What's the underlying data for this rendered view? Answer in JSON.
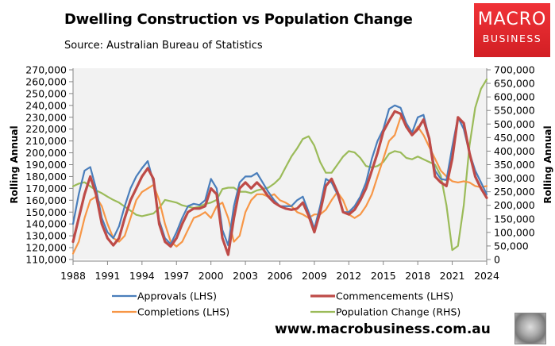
{
  "header": {
    "title": "Dwelling Construction vs Population Change",
    "subtitle": "Source: Australian Bureau of Statistics"
  },
  "logo": {
    "line1": "MACRO",
    "line2": "BUSINESS",
    "color": "#e8262b"
  },
  "footer": {
    "url": "www.macrobusiness.com.au",
    "mascot": "wolf-logo-icon"
  },
  "chart_data": {
    "type": "line",
    "title": "Dwelling Construction vs Population Change",
    "subtitle": "Source: Australian Bureau of Statistics",
    "xlabel": "",
    "ylabel": "Rolling Annual",
    "y2label": "Rolling Annual",
    "xlim": [
      1988,
      2024
    ],
    "ylim": [
      110000,
      270000
    ],
    "y2lim": [
      0,
      700000
    ],
    "grid": false,
    "plot_background": "#f2f2f2",
    "legend_position": "bottom",
    "x_ticks": [
      "1988",
      "1991",
      "1994",
      "1997",
      "2000",
      "2003",
      "2006",
      "2009",
      "2012",
      "2015",
      "2018",
      "2021",
      "2024"
    ],
    "x_tick_values": [
      1988,
      1991,
      1994,
      1997,
      2000,
      2003,
      2006,
      2009,
      2012,
      2015,
      2018,
      2021,
      2024
    ],
    "y_ticks": [
      "110,000",
      "120,000",
      "130,000",
      "140,000",
      "150,000",
      "160,000",
      "170,000",
      "180,000",
      "190,000",
      "200,000",
      "210,000",
      "220,000",
      "230,000",
      "240,000",
      "250,000",
      "260,000",
      "270,000"
    ],
    "y_tick_values": [
      110000,
      120000,
      130000,
      140000,
      150000,
      160000,
      170000,
      180000,
      190000,
      200000,
      210000,
      220000,
      230000,
      240000,
      250000,
      260000,
      270000
    ],
    "y2_ticks": [
      "0",
      "50,000",
      "100,000",
      "150,000",
      "200,000",
      "250,000",
      "300,000",
      "350,000",
      "400,000",
      "450,000",
      "500,000",
      "550,000",
      "600,000",
      "650,000",
      "700,000"
    ],
    "y2_tick_values": [
      0,
      50000,
      100000,
      150000,
      200000,
      250000,
      300000,
      350000,
      400000,
      450000,
      500000,
      550000,
      600000,
      650000,
      700000
    ],
    "x": [
      1988,
      1988.5,
      1989,
      1989.5,
      1990,
      1990.5,
      1991,
      1991.5,
      1992,
      1992.5,
      1993,
      1993.5,
      1994,
      1994.5,
      1995,
      1995.5,
      1996,
      1996.5,
      1997,
      1997.5,
      1998,
      1998.5,
      1999,
      1999.5,
      2000,
      2000.5,
      2001,
      2001.5,
      2002,
      2002.5,
      2003,
      2003.5,
      2004,
      2004.5,
      2005,
      2005.5,
      2006,
      2006.5,
      2007,
      2007.5,
      2008,
      2008.5,
      2009,
      2009.5,
      2010,
      2010.5,
      2011,
      2011.5,
      2012,
      2012.5,
      2013,
      2013.5,
      2014,
      2014.5,
      2015,
      2015.5,
      2016,
      2016.5,
      2017,
      2017.5,
      2018,
      2018.5,
      2019,
      2019.5,
      2020,
      2020.5,
      2021,
      2021.5,
      2022,
      2022.5,
      2023,
      2023.5,
      2024
    ],
    "series": [
      {
        "name": "Approvals (LHS)",
        "axis": "left",
        "color": "#4a7ebb",
        "values": [
          140000,
          165000,
          185000,
          188000,
          170000,
          145000,
          133000,
          128000,
          138000,
          155000,
          170000,
          180000,
          187000,
          193000,
          175000,
          143000,
          128000,
          123000,
          133000,
          145000,
          155000,
          157000,
          156000,
          160000,
          178000,
          170000,
          135000,
          122000,
          155000,
          175000,
          180000,
          180000,
          183000,
          175000,
          167000,
          160000,
          155000,
          155000,
          155000,
          160000,
          163000,
          150000,
          136000,
          155000,
          178000,
          175000,
          165000,
          150000,
          150000,
          155000,
          163000,
          175000,
          195000,
          210000,
          220000,
          237000,
          240000,
          238000,
          225000,
          217000,
          230000,
          232000,
          212000,
          185000,
          178000,
          177000,
          205000,
          230000,
          220000,
          200000,
          185000,
          175000,
          165000
        ]
      },
      {
        "name": "Commencements (LHS)",
        "axis": "left",
        "color": "#be4b48",
        "values": [
          125000,
          145000,
          165000,
          180000,
          165000,
          140000,
          128000,
          122000,
          128000,
          145000,
          160000,
          170000,
          180000,
          187000,
          178000,
          140000,
          125000,
          121000,
          128000,
          140000,
          150000,
          153000,
          153000,
          155000,
          170000,
          165000,
          128000,
          114000,
          145000,
          170000,
          175000,
          170000,
          175000,
          170000,
          163000,
          158000,
          155000,
          153000,
          152000,
          153000,
          158000,
          147000,
          133000,
          150000,
          172000,
          178000,
          167000,
          150000,
          148000,
          152000,
          160000,
          170000,
          185000,
          200000,
          218000,
          227000,
          235000,
          233000,
          222000,
          215000,
          220000,
          228000,
          212000,
          180000,
          175000,
          172000,
          195000,
          230000,
          225000,
          200000,
          180000,
          170000,
          162000
        ]
      },
      {
        "name": "Completions (LHS)",
        "axis": "left",
        "color": "#f79646",
        "values": [
          115000,
          125000,
          145000,
          160000,
          163000,
          155000,
          140000,
          128000,
          125000,
          130000,
          145000,
          160000,
          167000,
          170000,
          173000,
          160000,
          140000,
          125000,
          121000,
          125000,
          135000,
          145000,
          147000,
          150000,
          145000,
          155000,
          158000,
          145000,
          125000,
          130000,
          150000,
          160000,
          165000,
          165000,
          163000,
          165000,
          160000,
          158000,
          155000,
          150000,
          148000,
          145000,
          148000,
          148000,
          152000,
          160000,
          167000,
          160000,
          148000,
          145000,
          148000,
          155000,
          165000,
          180000,
          195000,
          210000,
          215000,
          230000,
          225000,
          215000,
          222000,
          215000,
          205000,
          195000,
          185000,
          180000,
          176000,
          175000,
          176000,
          175000,
          172000,
          171000,
          172000
        ]
      },
      {
        "name": "Population Change (RHS)",
        "axis": "right",
        "color": "#9bbb59",
        "values": [
          270000,
          280000,
          285000,
          270000,
          255000,
          245000,
          232000,
          220000,
          210000,
          195000,
          180000,
          165000,
          160000,
          165000,
          170000,
          190000,
          220000,
          215000,
          210000,
          200000,
          195000,
          190000,
          195000,
          205000,
          210000,
          220000,
          260000,
          265000,
          265000,
          250000,
          250000,
          245000,
          255000,
          260000,
          265000,
          280000,
          300000,
          340000,
          380000,
          410000,
          445000,
          455000,
          420000,
          360000,
          320000,
          320000,
          350000,
          380000,
          400000,
          395000,
          375000,
          345000,
          340000,
          345000,
          360000,
          390000,
          400000,
          395000,
          375000,
          370000,
          380000,
          370000,
          360000,
          350000,
          310000,
          200000,
          35000,
          50000,
          200000,
          420000,
          560000,
          630000,
          665000
        ]
      }
    ]
  }
}
